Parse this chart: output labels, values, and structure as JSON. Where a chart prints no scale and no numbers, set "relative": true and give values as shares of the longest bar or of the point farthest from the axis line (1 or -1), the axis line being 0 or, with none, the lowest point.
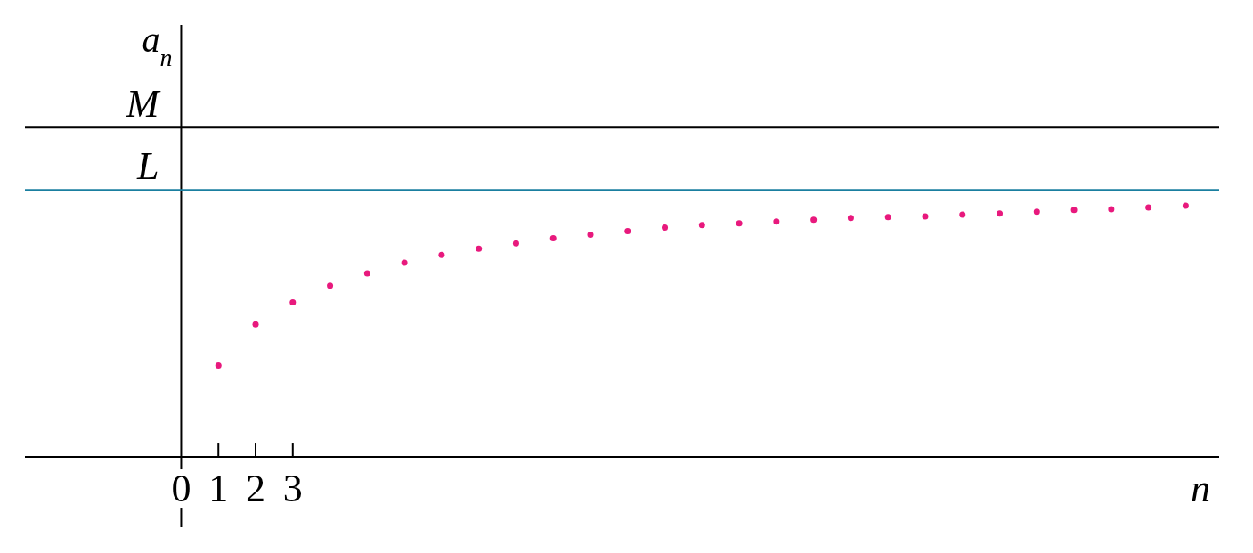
{
  "chart_data": {
    "type": "scatter",
    "relative": true,
    "xlabel": "n",
    "ylabel": "a$_{n}$",
    "marker": "circle",
    "x": [
      1,
      2,
      3,
      4,
      5,
      6,
      7,
      8,
      9,
      10,
      11,
      12,
      13,
      14,
      15,
      16,
      17,
      18,
      19,
      20,
      21,
      22,
      23,
      24,
      25,
      26,
      27
    ],
    "series": [
      {
        "color": "#e8197d",
        "values": [
          0.364,
          0.528,
          0.615,
          0.682,
          0.731,
          0.773,
          0.804,
          0.829,
          0.85,
          0.871,
          0.885,
          0.899,
          0.913,
          0.923,
          0.93,
          0.937,
          0.944,
          0.951,
          0.955,
          0.958,
          0.965,
          0.969,
          0.976,
          0.983,
          0.986,
          0.993,
          1
        ]
      }
    ],
    "xlim": [
      -4.2,
      27.9
    ],
    "xticks": [
      0,
      1,
      2,
      3
    ],
    "ref_lines": [
      {
        "axis": "y",
        "value": 1.311,
        "label": "M",
        "color": "#000000"
      },
      {
        "axis": "y",
        "value": 1.063,
        "label": "L",
        "color": "#1a7fa0"
      }
    ]
  }
}
